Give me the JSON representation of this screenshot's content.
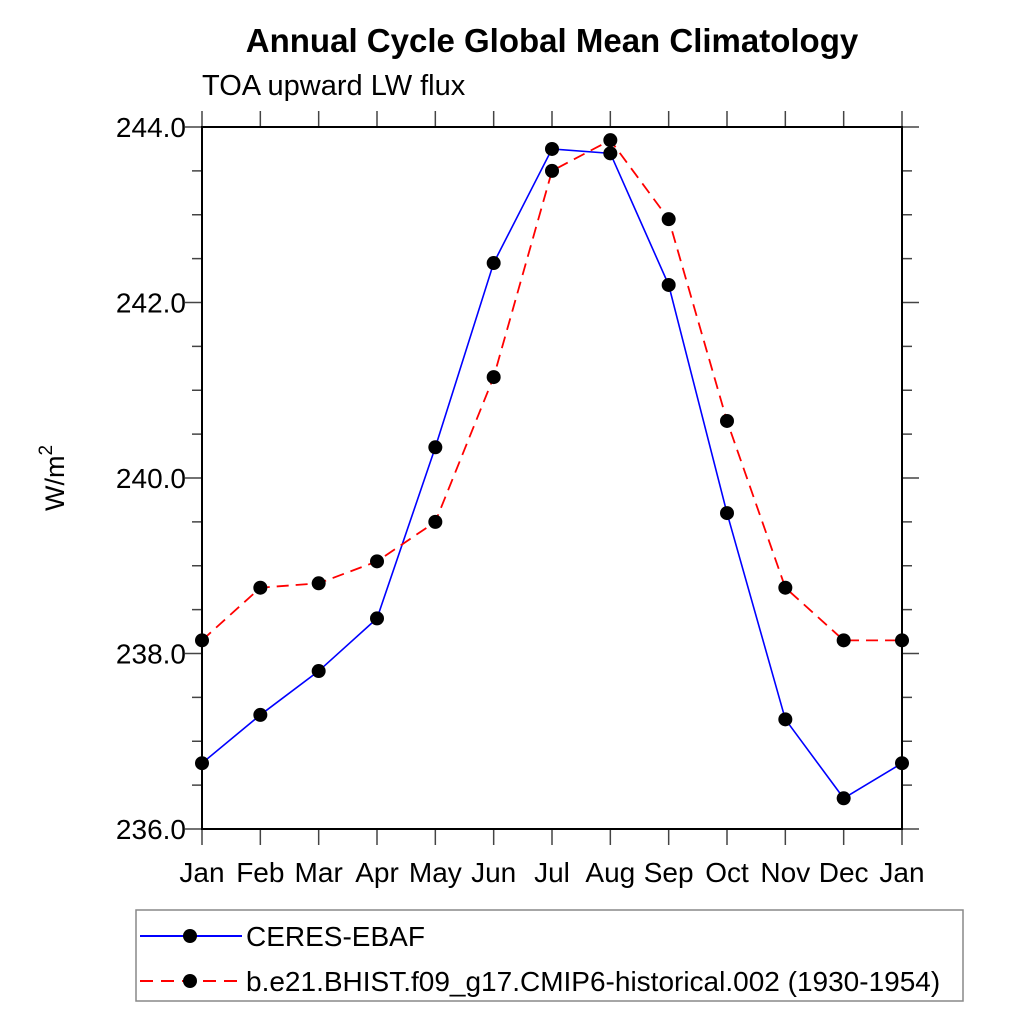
{
  "chart_data": {
    "type": "line",
    "title": "Annual Cycle Global Mean Climatology",
    "subtitle": "TOA upward LW flux",
    "xlabel": "",
    "ylabel": "W/m²",
    "ylabel_base": "W/m",
    "ylabel_exp": "2",
    "categories": [
      "Jan",
      "Feb",
      "Mar",
      "Apr",
      "May",
      "Jun",
      "Jul",
      "Aug",
      "Sep",
      "Oct",
      "Nov",
      "Dec",
      "Jan"
    ],
    "ylim": [
      236.0,
      244.0
    ],
    "ytick_major_step": 2.0,
    "ytick_minor_step": 0.5,
    "ytick_labels": [
      "236.0",
      "238.0",
      "240.0",
      "242.0",
      "244.0"
    ],
    "grid": false,
    "legend_position": "bottom-left-boxed",
    "frame_color": "#000000",
    "tick_color": "#444444",
    "legend_border_color": "#888888",
    "marker_color": "#000000",
    "series": [
      {
        "name": "CERES-EBAF",
        "color": "#0000ff",
        "dash": "solid",
        "marker": "circle",
        "values": [
          236.75,
          237.3,
          237.8,
          238.4,
          240.35,
          242.45,
          243.75,
          243.7,
          242.2,
          239.6,
          237.25,
          236.35,
          236.75
        ]
      },
      {
        "name": "b.e21.BHIST.f09_g17.CMIP6-historical.002 (1930-1954)",
        "color": "#ff0000",
        "dash": "dashed",
        "marker": "circle",
        "values": [
          238.15,
          238.75,
          238.8,
          239.05,
          239.5,
          241.15,
          243.5,
          243.85,
          242.95,
          240.65,
          238.75,
          238.15,
          238.15
        ]
      }
    ]
  }
}
